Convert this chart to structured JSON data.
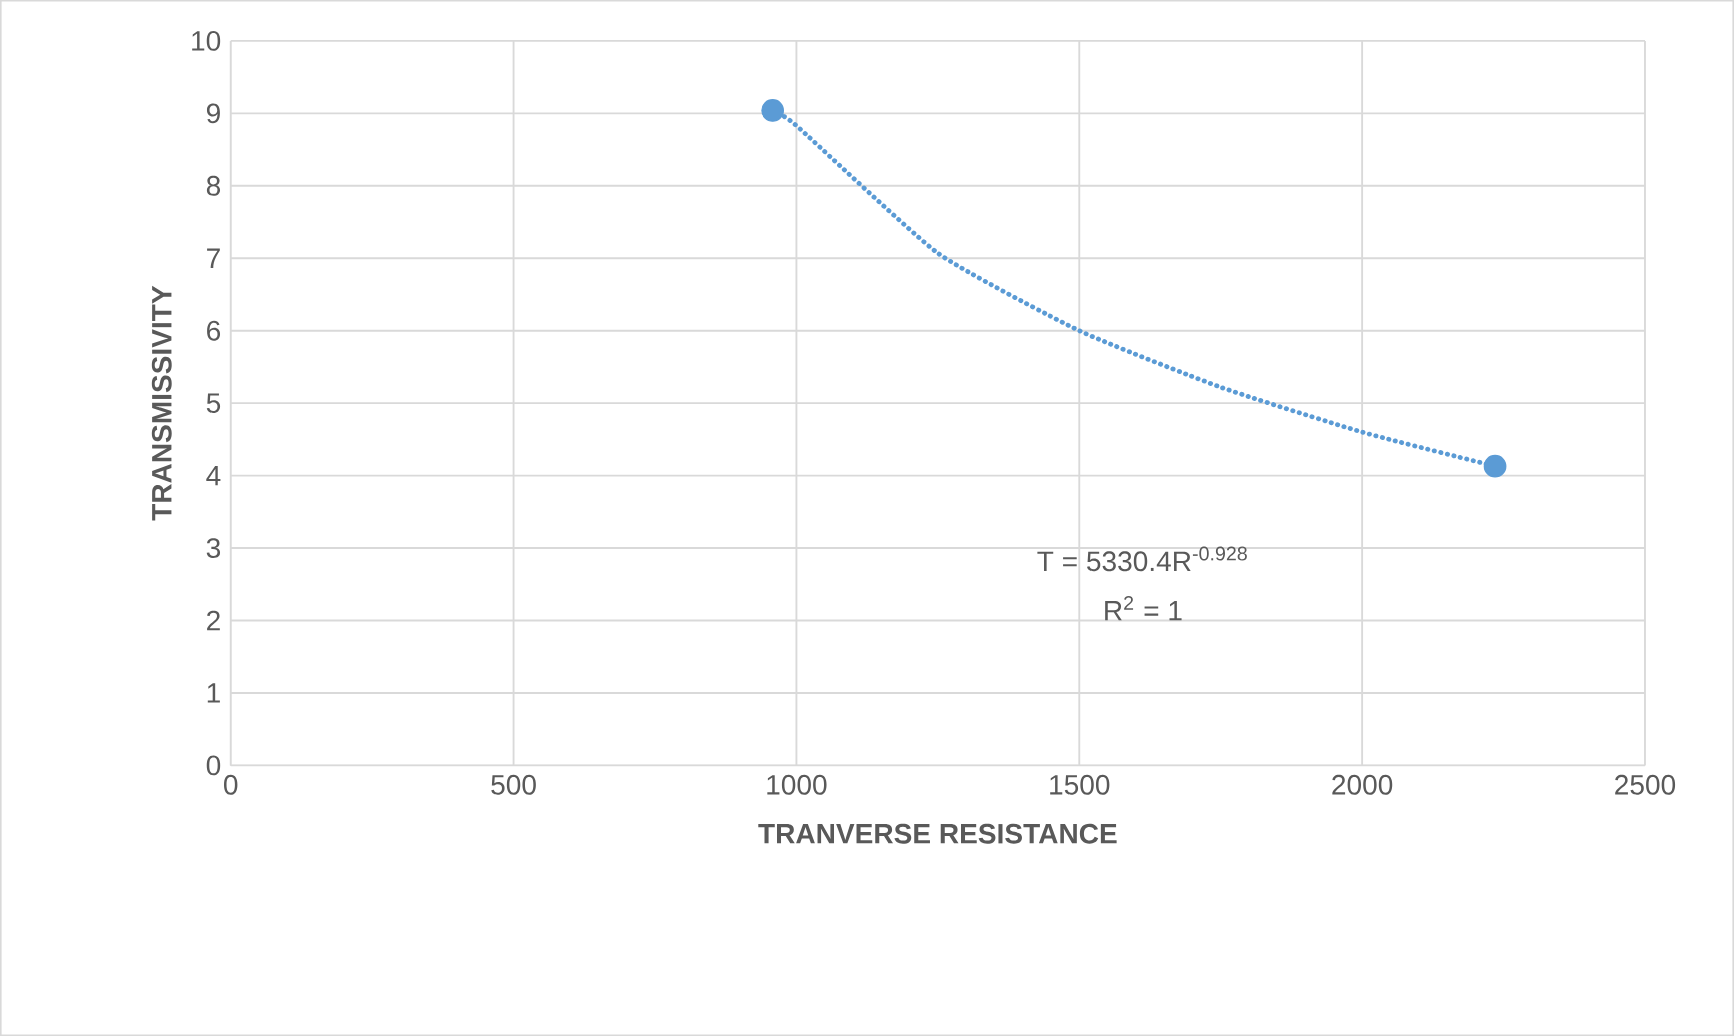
{
  "chart_data": {
    "type": "scatter",
    "xlabel": "TRANVERSE RESISTANCE",
    "ylabel": "TRANSMISSIVITY",
    "xlim": [
      0,
      2500
    ],
    "xticks": [
      0,
      500,
      1000,
      1500,
      2000,
      2500
    ],
    "ylim": [
      0,
      10
    ],
    "yticks": [
      0,
      1,
      2,
      3,
      4,
      5,
      6,
      7,
      8,
      9,
      10
    ],
    "grid": true,
    "series": [
      {
        "color": "#5b9bd5",
        "marker": "circle",
        "x": [
          958,
          2235
        ],
        "values": [
          9.04,
          4.13
        ]
      },
      {
        "type": "line",
        "color": "#5b9bd5",
        "line_style": "dotted",
        "marker": "none",
        "x": [
          958,
          1000,
          1250,
          1500,
          1750,
          2000,
          2235
        ],
        "values": [
          9.04,
          8.83,
          7.07,
          6.0,
          5.22,
          4.6,
          4.13
        ]
      }
    ],
    "annotations": [
      "T = 5330.4R$^{-0.928}$",
      "R$^{2}$ = 1"
    ]
  }
}
